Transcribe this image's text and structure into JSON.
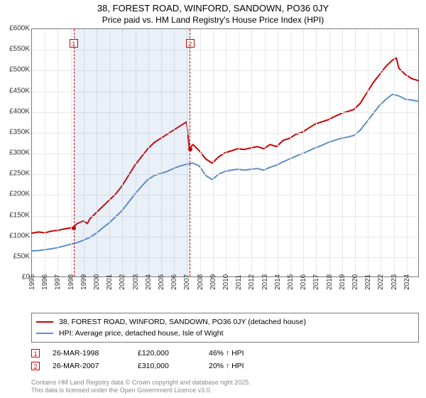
{
  "title_line1": "38, FOREST ROAD, WINFORD, SANDOWN, PO36 0JY",
  "title_line2": "Price paid vs. HM Land Registry's House Price Index (HPI)",
  "chart": {
    "type": "line",
    "background_color": "#ffffff",
    "grid_color": "#e8e8e8",
    "border_color": "#7a7a7a",
    "shade_color": "rgba(70,130,200,0.12)",
    "x_min": 1995,
    "x_max": 2025,
    "y_min": 0,
    "y_max": 600,
    "y_ticks": [
      0,
      50,
      100,
      150,
      200,
      250,
      300,
      350,
      400,
      450,
      500,
      550,
      600
    ],
    "y_tick_labels": [
      "£0",
      "£50K",
      "£100K",
      "£150K",
      "£200K",
      "£250K",
      "£300K",
      "£350K",
      "£400K",
      "£450K",
      "£500K",
      "£550K",
      "£600K"
    ],
    "x_ticks": [
      1995,
      1996,
      1997,
      1998,
      1999,
      2000,
      2001,
      2002,
      2003,
      2004,
      2005,
      2006,
      2007,
      2008,
      2009,
      2010,
      2011,
      2012,
      2013,
      2014,
      2015,
      2016,
      2017,
      2018,
      2019,
      2020,
      2021,
      2022,
      2023,
      2024
    ],
    "series": [
      {
        "name": "price_paid",
        "color": "#cc0000",
        "stroke_width": 2,
        "data": [
          [
            1995,
            105
          ],
          [
            1995.5,
            108
          ],
          [
            1996,
            106
          ],
          [
            1996.5,
            110
          ],
          [
            1997,
            112
          ],
          [
            1997.5,
            115
          ],
          [
            1998,
            118
          ],
          [
            1998.23,
            120
          ],
          [
            1998.5,
            128
          ],
          [
            1999,
            135
          ],
          [
            1999.3,
            128
          ],
          [
            1999.5,
            140
          ],
          [
            2000,
            155
          ],
          [
            2000.5,
            170
          ],
          [
            2001,
            185
          ],
          [
            2001.5,
            200
          ],
          [
            2002,
            220
          ],
          [
            2002.5,
            245
          ],
          [
            2003,
            270
          ],
          [
            2003.5,
            290
          ],
          [
            2004,
            310
          ],
          [
            2004.5,
            325
          ],
          [
            2005,
            335
          ],
          [
            2005.5,
            345
          ],
          [
            2006,
            355
          ],
          [
            2006.5,
            365
          ],
          [
            2007,
            375
          ],
          [
            2007.23,
            310
          ],
          [
            2007.5,
            320
          ],
          [
            2008,
            305
          ],
          [
            2008.5,
            285
          ],
          [
            2009,
            275
          ],
          [
            2009.5,
            290
          ],
          [
            2010,
            300
          ],
          [
            2010.5,
            305
          ],
          [
            2011,
            310
          ],
          [
            2011.5,
            308
          ],
          [
            2012,
            312
          ],
          [
            2012.5,
            315
          ],
          [
            2013,
            310
          ],
          [
            2013.5,
            320
          ],
          [
            2014,
            315
          ],
          [
            2014.5,
            330
          ],
          [
            2015,
            335
          ],
          [
            2015.5,
            345
          ],
          [
            2016,
            350
          ],
          [
            2016.5,
            360
          ],
          [
            2017,
            370
          ],
          [
            2017.5,
            375
          ],
          [
            2018,
            380
          ],
          [
            2018.5,
            388
          ],
          [
            2019,
            395
          ],
          [
            2019.5,
            400
          ],
          [
            2020,
            405
          ],
          [
            2020.5,
            420
          ],
          [
            2021,
            445
          ],
          [
            2021.5,
            470
          ],
          [
            2022,
            490
          ],
          [
            2022.5,
            510
          ],
          [
            2023,
            525
          ],
          [
            2023.3,
            530
          ],
          [
            2023.5,
            505
          ],
          [
            2024,
            490
          ],
          [
            2024.5,
            480
          ],
          [
            2025,
            475
          ]
        ]
      },
      {
        "name": "hpi",
        "color": "#5b8fc7",
        "stroke_width": 2,
        "data": [
          [
            1995,
            62
          ],
          [
            1995.5,
            63
          ],
          [
            1996,
            65
          ],
          [
            1996.5,
            67
          ],
          [
            1997,
            70
          ],
          [
            1997.5,
            74
          ],
          [
            1998,
            78
          ],
          [
            1998.5,
            82
          ],
          [
            1999,
            88
          ],
          [
            1999.5,
            95
          ],
          [
            2000,
            105
          ],
          [
            2000.5,
            118
          ],
          [
            2001,
            130
          ],
          [
            2001.5,
            145
          ],
          [
            2002,
            160
          ],
          [
            2002.5,
            180
          ],
          [
            2003,
            200
          ],
          [
            2003.5,
            218
          ],
          [
            2004,
            235
          ],
          [
            2004.5,
            245
          ],
          [
            2005,
            250
          ],
          [
            2005.5,
            255
          ],
          [
            2006,
            262
          ],
          [
            2006.5,
            268
          ],
          [
            2007,
            272
          ],
          [
            2007.5,
            275
          ],
          [
            2008,
            268
          ],
          [
            2008.5,
            245
          ],
          [
            2009,
            235
          ],
          [
            2009.5,
            248
          ],
          [
            2010,
            255
          ],
          [
            2010.5,
            258
          ],
          [
            2011,
            260
          ],
          [
            2011.5,
            258
          ],
          [
            2012,
            260
          ],
          [
            2012.5,
            262
          ],
          [
            2013,
            258
          ],
          [
            2013.5,
            265
          ],
          [
            2014,
            270
          ],
          [
            2014.5,
            278
          ],
          [
            2015,
            285
          ],
          [
            2015.5,
            292
          ],
          [
            2016,
            298
          ],
          [
            2016.5,
            305
          ],
          [
            2017,
            312
          ],
          [
            2017.5,
            318
          ],
          [
            2018,
            325
          ],
          [
            2018.5,
            330
          ],
          [
            2019,
            335
          ],
          [
            2019.5,
            338
          ],
          [
            2020,
            342
          ],
          [
            2020.5,
            355
          ],
          [
            2021,
            375
          ],
          [
            2021.5,
            395
          ],
          [
            2022,
            415
          ],
          [
            2022.5,
            430
          ],
          [
            2023,
            442
          ],
          [
            2023.5,
            438
          ],
          [
            2024,
            430
          ],
          [
            2024.5,
            428
          ],
          [
            2025,
            425
          ]
        ]
      }
    ],
    "shade_ranges": [
      [
        1998.23,
        2007.23
      ]
    ],
    "markers": [
      {
        "label": "1",
        "x": 1998.23,
        "y_box": 565,
        "dot_y": 120
      },
      {
        "label": "2",
        "x": 2007.23,
        "y_box": 565,
        "dot_y": 310
      }
    ]
  },
  "legend": {
    "items": [
      {
        "color": "#cc0000",
        "label": "38, FOREST ROAD, WINFORD, SANDOWN, PO36 0JY (detached house)"
      },
      {
        "color": "#5b8fc7",
        "label": "HPI: Average price, detached house, Isle of Wight"
      }
    ]
  },
  "sales": [
    {
      "num": "1",
      "date": "26-MAR-1998",
      "price": "£120,000",
      "pct": "46% ↑ HPI"
    },
    {
      "num": "2",
      "date": "26-MAR-2007",
      "price": "£310,000",
      "pct": "20% ↑ HPI"
    }
  ],
  "attribution": {
    "line1": "Contains HM Land Registry data © Crown copyright and database right 2025.",
    "line2": "This data is licensed under the Open Government Licence v3.0."
  }
}
